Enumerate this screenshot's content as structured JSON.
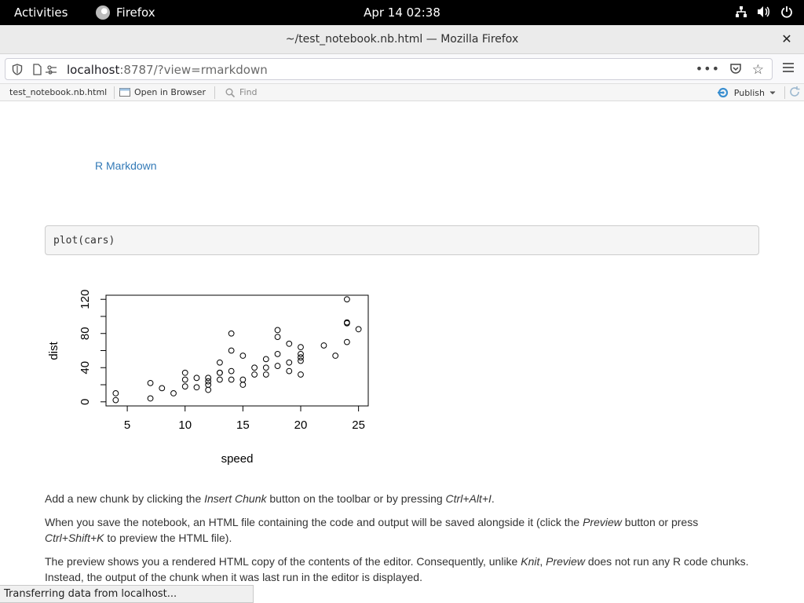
{
  "topbar": {
    "activities": "Activities",
    "app_name": "Firefox",
    "clock": "Apr 14  02:38"
  },
  "window": {
    "title": "~/test_notebook.nb.html — Mozilla Firefox",
    "close_glyph": "✕"
  },
  "navbar": {
    "url_host": "localhost",
    "url_rest": ":8787/?view=rmarkdown",
    "more_glyph": "•••",
    "star_glyph": "☆"
  },
  "rtoolbar": {
    "filename": "test_notebook.nb.html",
    "open_in_browser": "Open in Browser",
    "find_placeholder": "Find",
    "publish": "Publish"
  },
  "doc": {
    "heading_link": "R Markdown",
    "code": "plot(cars)",
    "para1": [
      {
        "t": "Add a new chunk by clicking the "
      },
      {
        "t": "Insert Chunk",
        "i": true
      },
      {
        "t": " button on the toolbar or by pressing "
      },
      {
        "t": "Ctrl+Alt+I",
        "i": true
      },
      {
        "t": "."
      }
    ],
    "para2": [
      {
        "t": "When you save the notebook, an HTML file containing the code and output will be saved alongside it (click the "
      },
      {
        "t": "Preview",
        "i": true
      },
      {
        "t": " button or press "
      },
      {
        "t": "Ctrl+Shift+K",
        "i": true
      },
      {
        "t": " to preview the HTML file)."
      }
    ],
    "para3": [
      {
        "t": "The preview shows you a rendered HTML copy of the contents of the editor. Consequently, unlike "
      },
      {
        "t": "Knit",
        "i": true
      },
      {
        "t": ", "
      },
      {
        "t": "Preview",
        "i": true
      },
      {
        "t": " does not run any R code chunks. Instead, the output of the chunk when it was last run in the editor is displayed."
      }
    ]
  },
  "chart_data": {
    "type": "scatter",
    "xlabel": "speed",
    "ylabel": "dist",
    "xlim": [
      4,
      25
    ],
    "ylim": [
      0,
      120
    ],
    "x_ticks": [
      5,
      10,
      15,
      20,
      25
    ],
    "y_ticks": [
      0,
      40,
      80,
      120
    ],
    "x_tick_labels": [
      "5",
      "10",
      "15",
      "20",
      "25"
    ],
    "y_tick_labels": [
      "0",
      "40",
      "80",
      "120"
    ],
    "grid": false,
    "points": [
      [
        4,
        2
      ],
      [
        4,
        10
      ],
      [
        7,
        4
      ],
      [
        7,
        22
      ],
      [
        8,
        16
      ],
      [
        9,
        10
      ],
      [
        10,
        18
      ],
      [
        10,
        26
      ],
      [
        10,
        34
      ],
      [
        11,
        17
      ],
      [
        11,
        28
      ],
      [
        12,
        14
      ],
      [
        12,
        20
      ],
      [
        12,
        24
      ],
      [
        12,
        28
      ],
      [
        13,
        26
      ],
      [
        13,
        34
      ],
      [
        13,
        34
      ],
      [
        13,
        46
      ],
      [
        14,
        26
      ],
      [
        14,
        36
      ],
      [
        14,
        60
      ],
      [
        14,
        80
      ],
      [
        15,
        20
      ],
      [
        15,
        26
      ],
      [
        15,
        54
      ],
      [
        16,
        32
      ],
      [
        16,
        40
      ],
      [
        17,
        32
      ],
      [
        17,
        40
      ],
      [
        17,
        50
      ],
      [
        18,
        42
      ],
      [
        18,
        56
      ],
      [
        18,
        76
      ],
      [
        18,
        84
      ],
      [
        19,
        36
      ],
      [
        19,
        46
      ],
      [
        19,
        68
      ],
      [
        20,
        32
      ],
      [
        20,
        48
      ],
      [
        20,
        52
      ],
      [
        20,
        56
      ],
      [
        20,
        64
      ],
      [
        22,
        66
      ],
      [
        23,
        54
      ],
      [
        24,
        70
      ],
      [
        24,
        92
      ],
      [
        24,
        93
      ],
      [
        24,
        120
      ],
      [
        25,
        85
      ]
    ]
  },
  "status": "Transferring data from localhost..."
}
